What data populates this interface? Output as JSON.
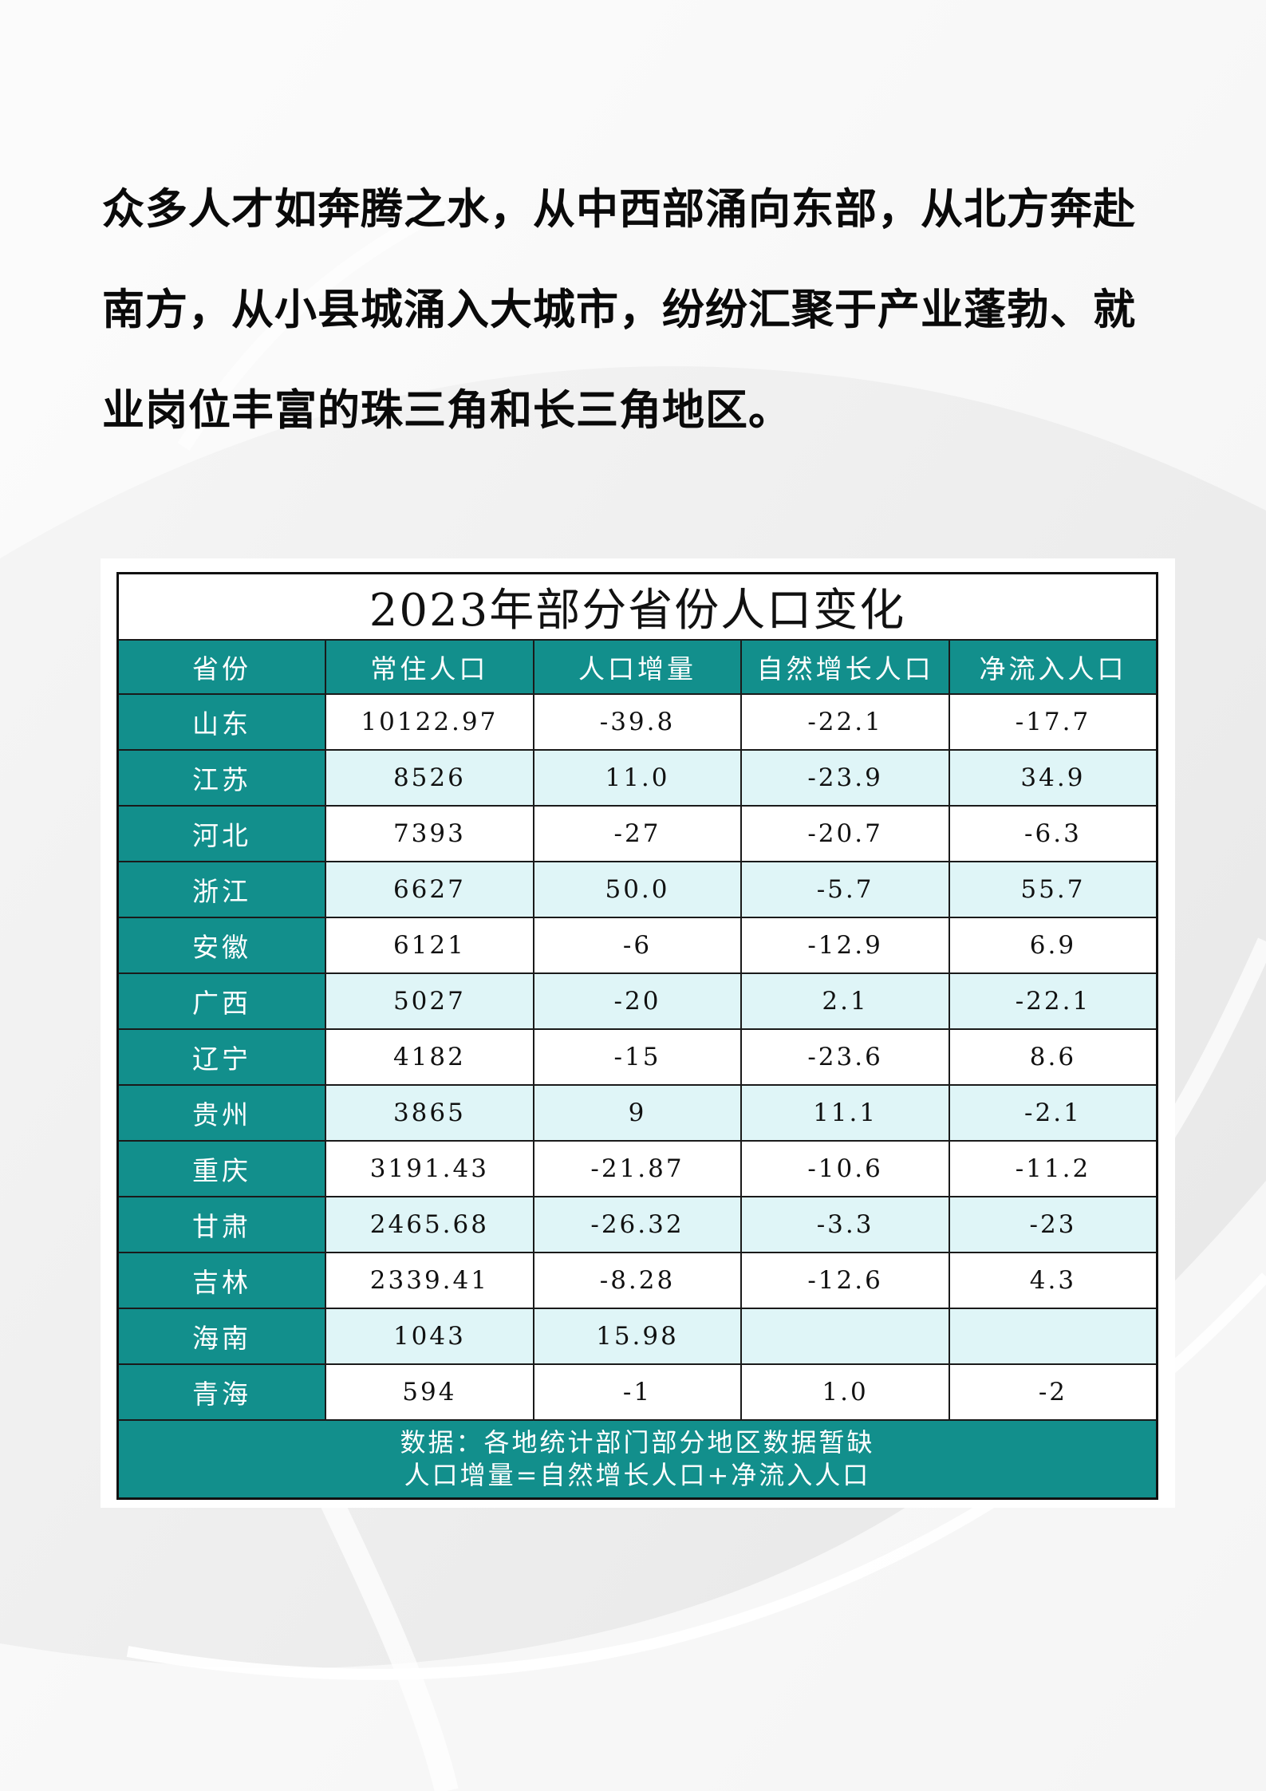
{
  "intro": {
    "text": "众多人才如奔腾之水，从中西部涌向东部，从北方奔赴南方，从小县城涌入大城市，纷纷汇聚于产业蓬勃、就业岗位丰富的珠三角和长三角地区。"
  },
  "table": {
    "title": "2023年部分省份人口变化",
    "headers": [
      "省份",
      "常住人口",
      "人口增量",
      "自然增长人口",
      "净流入人口"
    ],
    "rows": [
      [
        "山东",
        "10122.97",
        "-39.8",
        "-22.1",
        "-17.7"
      ],
      [
        "江苏",
        "8526",
        "11.0",
        "-23.9",
        "34.9"
      ],
      [
        "河北",
        "7393",
        "-27",
        "-20.7",
        "-6.3"
      ],
      [
        "浙江",
        "6627",
        "50.0",
        "-5.7",
        "55.7"
      ],
      [
        "安徽",
        "6121",
        "-6",
        "-12.9",
        "6.9"
      ],
      [
        "广西",
        "5027",
        "-20",
        "2.1",
        "-22.1"
      ],
      [
        "辽宁",
        "4182",
        "-15",
        "-23.6",
        "8.6"
      ],
      [
        "贵州",
        "3865",
        "9",
        "11.1",
        "-2.1"
      ],
      [
        "重庆",
        "3191.43",
        "-21.87",
        "-10.6",
        "-11.2"
      ],
      [
        "甘肃",
        "2465.68",
        "-26.32",
        "-3.3",
        "-23"
      ],
      [
        "吉林",
        "2339.41",
        "-8.28",
        "-12.6",
        "4.3"
      ],
      [
        "海南",
        "1043",
        "15.98",
        "",
        ""
      ],
      [
        "青海",
        "594",
        "-1",
        "1.0",
        "-2"
      ]
    ],
    "footnote": [
      "数据：各地统计部门部分地区数据暂缺",
      "人口增量=自然增长人口+净流入人口"
    ],
    "colors": {
      "header_bg": "#128f8c",
      "stripe_bg": "#dff5f7"
    }
  }
}
